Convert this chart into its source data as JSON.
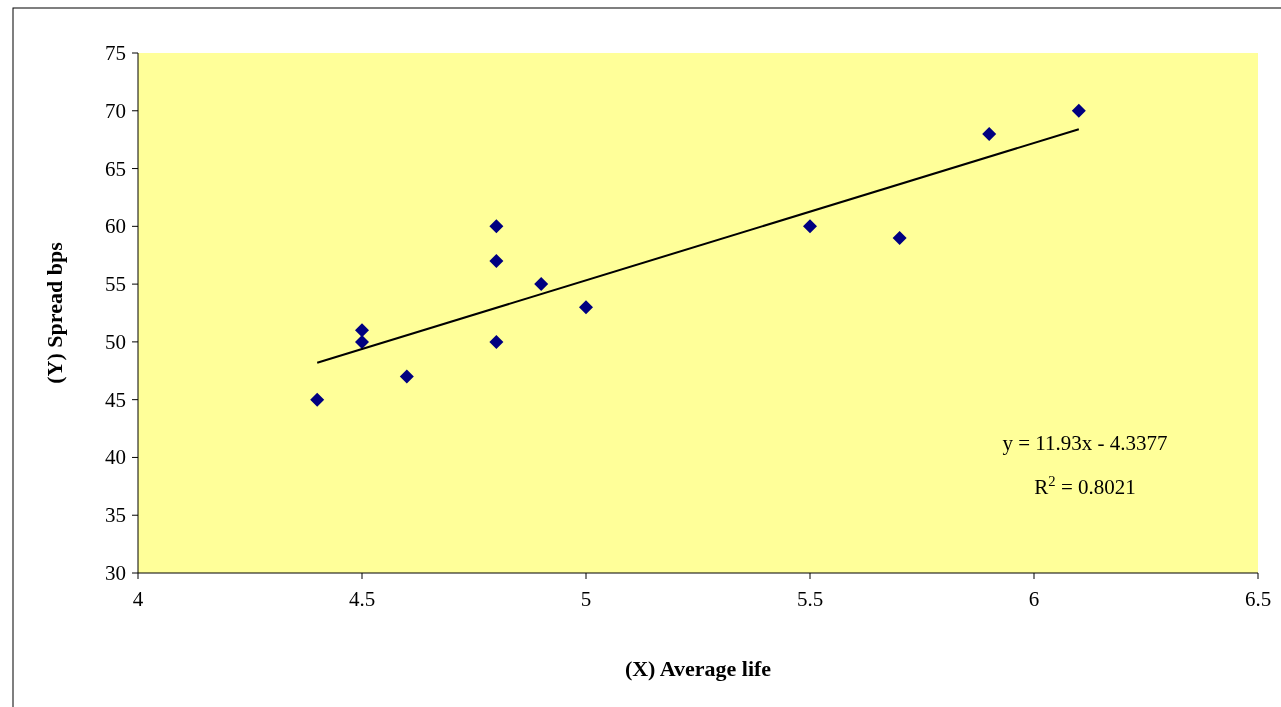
{
  "chart_data": {
    "type": "scatter",
    "xlabel": "(X) Average life",
    "ylabel": "(Y) Spread bps",
    "xlim": [
      4,
      6.5
    ],
    "xticks": [
      4,
      4.5,
      5,
      5.5,
      6,
      6.5
    ],
    "ylim": [
      30,
      75
    ],
    "yticks": [
      30,
      35,
      40,
      45,
      50,
      55,
      60,
      65,
      70,
      75
    ],
    "series": [
      {
        "marker": "diamond",
        "color": "#000080",
        "x": [
          4.4,
          4.5,
          4.5,
          4.6,
          4.8,
          4.8,
          4.8,
          4.9,
          5.0,
          5.5,
          5.7,
          5.9,
          6.1
        ],
        "values": [
          45,
          51,
          50,
          47,
          60,
          57,
          50,
          55,
          53,
          60,
          59,
          68,
          70
        ]
      },
      {
        "type": "line",
        "color": "#000000",
        "x": [
          4.4,
          6.1
        ],
        "values": [
          48.2,
          68.4
        ]
      }
    ],
    "annotations": [
      "y = 11.93x - 4.3377",
      "R$^{2}$ = 0.8021"
    ]
  }
}
